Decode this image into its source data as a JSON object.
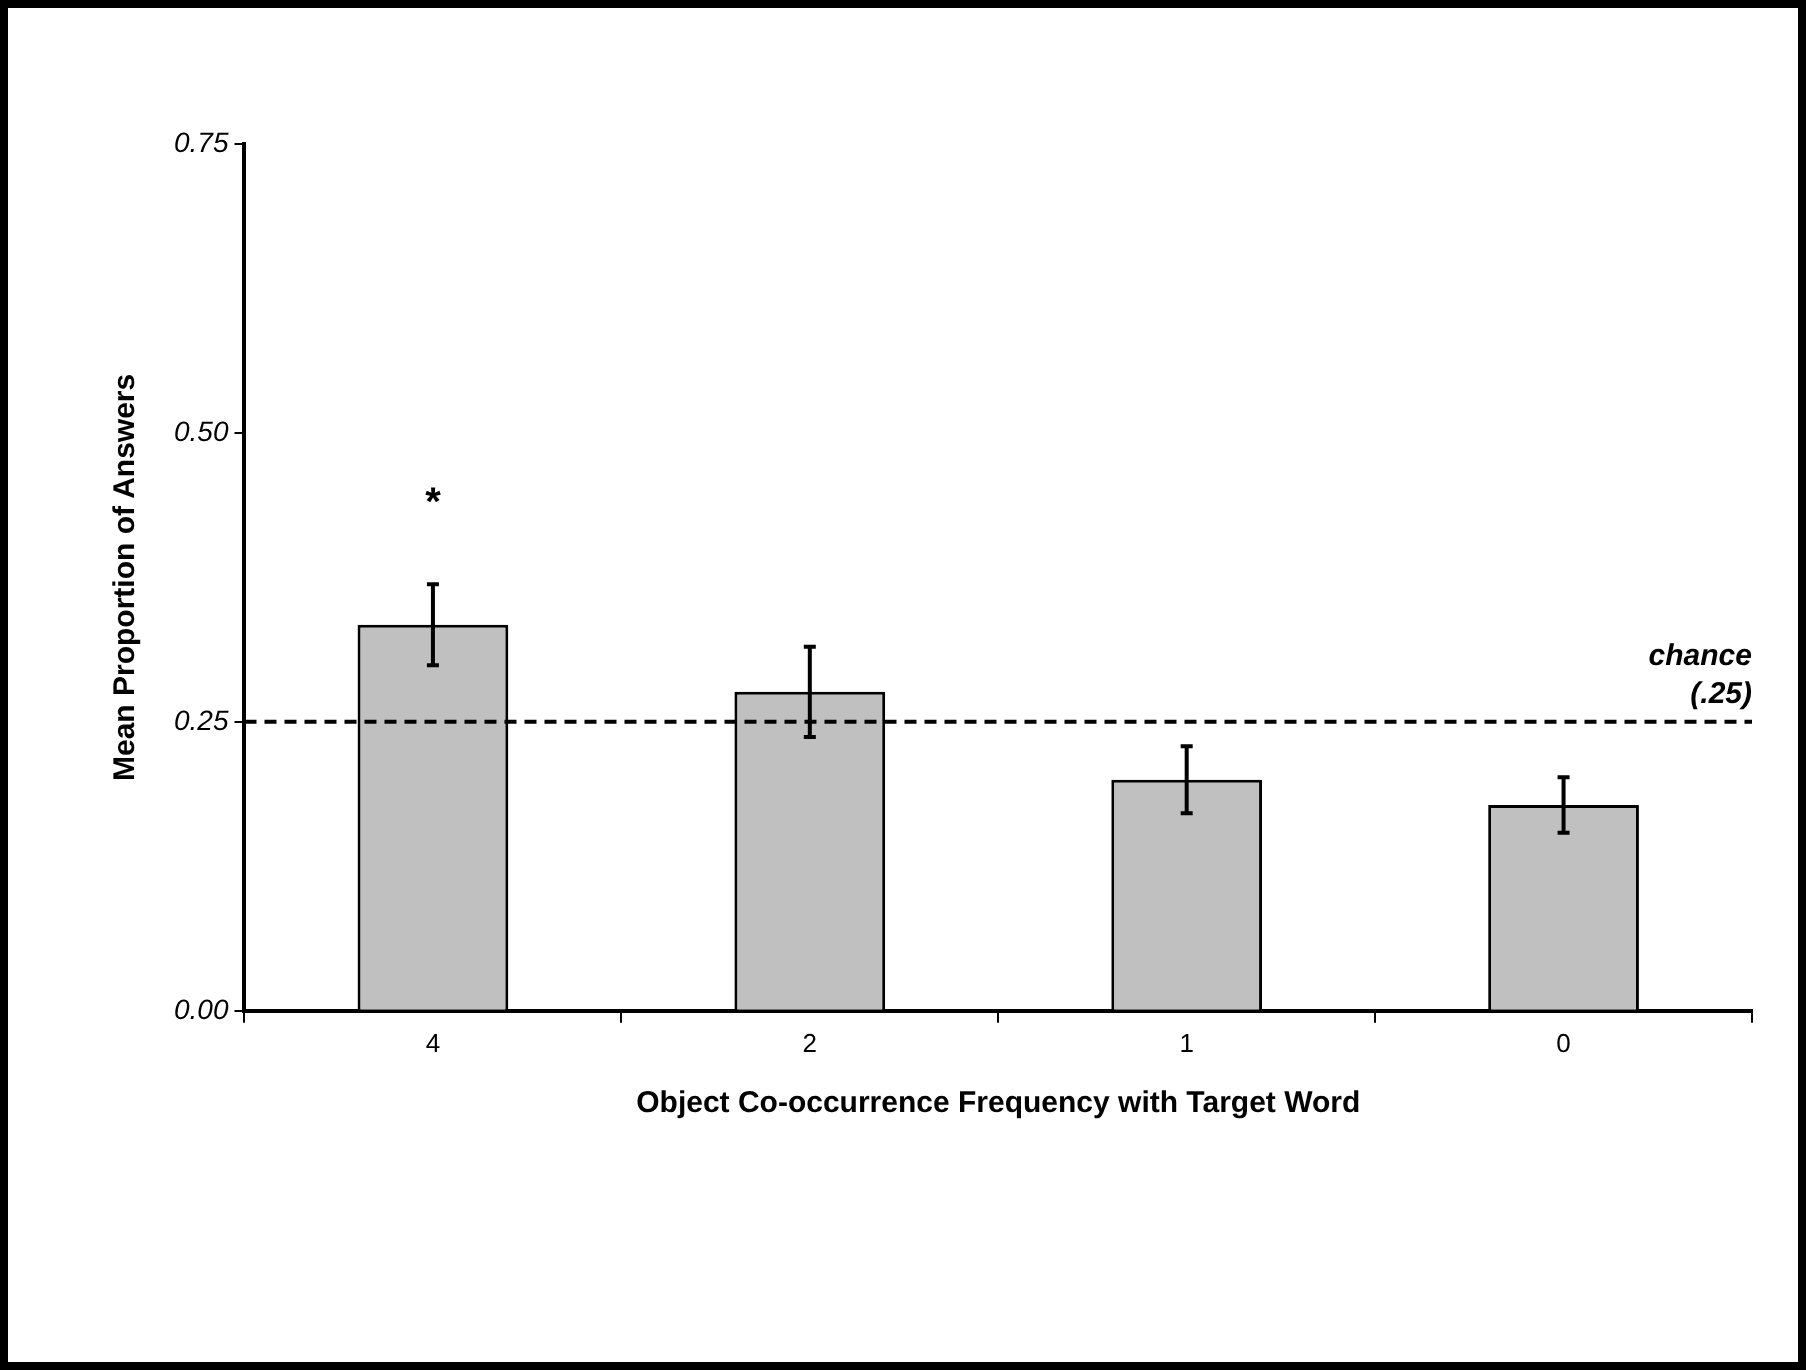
{
  "chart_data": {
    "type": "bar",
    "xlabel": "Object Co-occurrence Frequency with Target Word",
    "ylabel": "Mean Proportion of Answers",
    "categories": [
      "4",
      "2",
      "1",
      "0"
    ],
    "values": [
      0.334,
      0.276,
      0.2,
      0.178
    ],
    "errors": [
      0.035,
      0.039,
      0.029,
      0.024
    ],
    "color": "#c0c0c0",
    "ylim": [
      0,
      0.75
    ],
    "yticks": [
      {
        "value": 0,
        "label": "0.00"
      },
      {
        "value": 0.25,
        "label": "0.25"
      },
      {
        "value": 0.5,
        "label": "0.50"
      },
      {
        "value": 0.75,
        "label": "0.75"
      }
    ],
    "ref_lines": [
      {
        "axis": "y",
        "value": 0.25,
        "label": "chance (.25)",
        "color": "#000000",
        "line_style": "dashed"
      }
    ],
    "annotations": [
      "*"
    ],
    "grid": false,
    "legend": false
  }
}
